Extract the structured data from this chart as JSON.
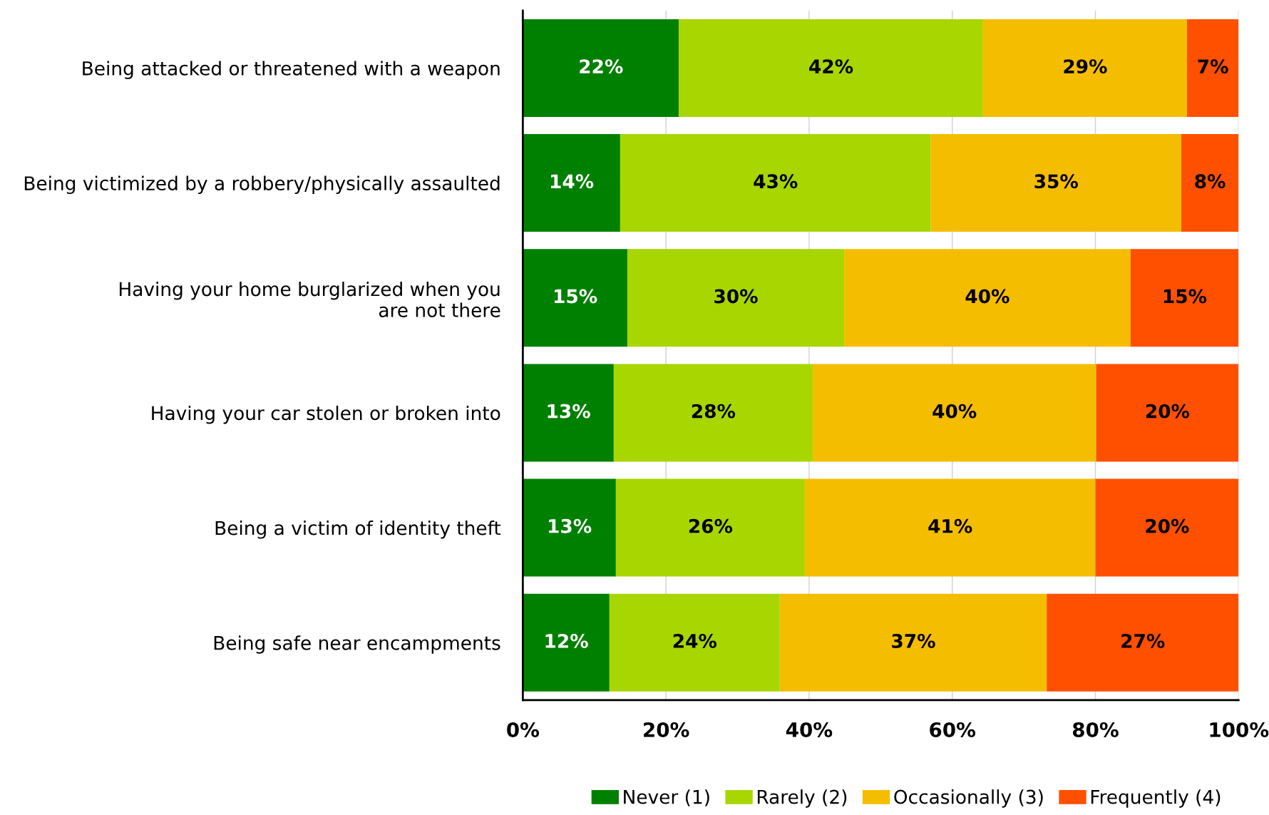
{
  "chart_data": {
    "type": "bar",
    "orientation": "horizontal",
    "stacked": true,
    "categories": [
      "Being attacked or threatened with a weapon",
      "Being victimized by a robbery/physically assaulted",
      "Having your home burglarized when you\nare not there",
      "Having your car stolen or broken into",
      "Being a victim of identity theft",
      "Being safe near encampments"
    ],
    "series": [
      {
        "name": "Never (1)",
        "color": "#008000",
        "values": [
          21.8,
          13.6,
          14.6,
          12.7,
          13.0,
          12.1
        ],
        "value_labels": [
          "22%",
          "14%",
          "15%",
          "13%",
          "13%",
          "12%"
        ]
      },
      {
        "name": "Rarely (2)",
        "color": "#a8d600",
        "values": [
          42.5,
          43.4,
          30.3,
          27.8,
          26.4,
          23.8
        ],
        "value_labels": [
          "42%",
          "43%",
          "30%",
          "28%",
          "26%",
          "24%"
        ]
      },
      {
        "name": "Occasionally (3)",
        "color": "#f5bd00",
        "values": [
          28.5,
          35.0,
          40.0,
          39.6,
          40.6,
          37.3
        ],
        "value_labels": [
          "29%",
          "35%",
          "40%",
          "40%",
          "41%",
          "37%"
        ]
      },
      {
        "name": "Frequently (4)",
        "color": "#ff5000",
        "values": [
          7.2,
          8.0,
          15.1,
          19.9,
          20.0,
          26.8
        ],
        "value_labels": [
          "7%",
          "8%",
          "15%",
          "20%",
          "20%",
          "27%"
        ]
      }
    ],
    "xlim": [
      0,
      100
    ],
    "xticks": [
      {
        "value": 0,
        "label": "0%"
      },
      {
        "value": 20,
        "label": "20%"
      },
      {
        "value": 40,
        "label": "40%"
      },
      {
        "value": 60,
        "label": "60%"
      },
      {
        "value": 80,
        "label": "80%"
      },
      {
        "value": 100,
        "label": "100%"
      }
    ],
    "grid": "x",
    "legend": "bottom"
  }
}
